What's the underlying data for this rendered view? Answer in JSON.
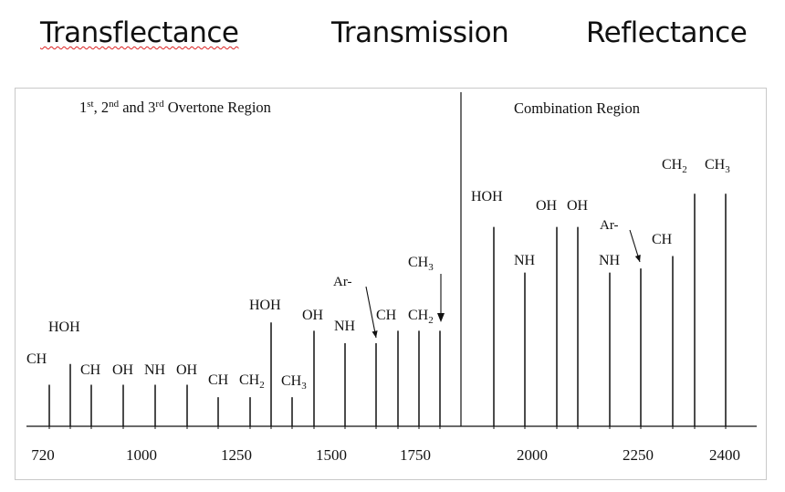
{
  "header": {
    "transflectance": "Transflectance",
    "transmission": "Transmission",
    "reflectance": "Reflectance"
  },
  "chart_data": {
    "type": "bar",
    "regions": [
      {
        "label": "1st, 2nd and 3rd Overtone Region"
      },
      {
        "label": "Combination Region"
      }
    ],
    "x_ticks": [
      "720",
      "1000",
      "1250",
      "1500",
      "1750",
      "2000",
      "2250",
      "2400"
    ],
    "bars": [
      {
        "id": "ch-1",
        "label": "CH",
        "value": 1.0
      },
      {
        "id": "hoh-1",
        "label": "HOH",
        "value": 1.5
      },
      {
        "id": "ch-2",
        "label": "CH",
        "value": 1.0
      },
      {
        "id": "oh-1",
        "label": "OH",
        "value": 1.0
      },
      {
        "id": "nh-1",
        "label": "NH",
        "value": 1.0
      },
      {
        "id": "oh-2",
        "label": "OH",
        "value": 1.0
      },
      {
        "id": "ch-3",
        "label": "CH",
        "value": 0.7
      },
      {
        "id": "ch2-1",
        "label": "CH2",
        "value": 0.7
      },
      {
        "id": "hoh-2",
        "label": "HOH",
        "value": 2.5
      },
      {
        "id": "ch3-1",
        "label": "CH3",
        "value": 0.7
      },
      {
        "id": "oh-3",
        "label": "OH",
        "value": 2.3
      },
      {
        "id": "nh-2",
        "label": "NH",
        "value": 2.0
      },
      {
        "id": "arch-1",
        "label": "Ar-CH",
        "value": 2.0
      },
      {
        "id": "ch-4",
        "label": "CH",
        "value": 2.3
      },
      {
        "id": "ch2-2",
        "label": "CH2",
        "value": 2.3
      },
      {
        "id": "ch3-2",
        "label": "CH3",
        "value": 2.3
      },
      {
        "id": "hoh-3",
        "label": "HOH",
        "value": 4.8
      },
      {
        "id": "nh-3",
        "label": "NH",
        "value": 3.7
      },
      {
        "id": "oh-4",
        "label": "OH",
        "value": 4.8
      },
      {
        "id": "oh-5",
        "label": "OH",
        "value": 4.8
      },
      {
        "id": "nh-4",
        "label": "NH",
        "value": 3.7
      },
      {
        "id": "arch-2",
        "label": "Ar-CH",
        "value": 3.8
      },
      {
        "id": "ch-5",
        "label": "CH",
        "value": 4.1
      },
      {
        "id": "ch2-3",
        "label": "CH2",
        "value": 5.6
      },
      {
        "id": "ch3-3",
        "label": "CH3",
        "value": 5.6
      }
    ]
  }
}
